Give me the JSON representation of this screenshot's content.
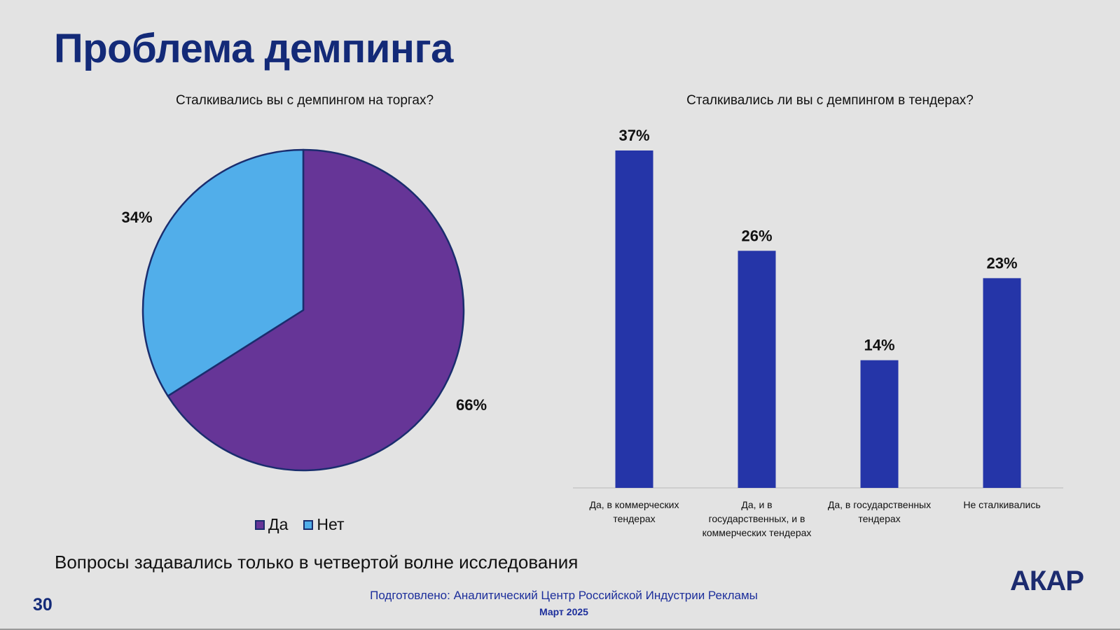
{
  "slide": {
    "title": "Проблема демпинга",
    "note": "Вопросы задавались только в четвертой волне исследования",
    "page_number": "30",
    "footer_source": "Подготовлено: Аналитический Центр Российской Индустрии Рекламы",
    "footer_date": "Март 2025",
    "logo_text": "АКАР"
  },
  "colors": {
    "title": "#132a78",
    "pie_yes": "#663597",
    "pie_no": "#51aeea",
    "pie_border": "#1a2d6e",
    "bar": "#2535a8",
    "axis": "#c8c8c8"
  },
  "chart_data": [
    {
      "type": "pie",
      "title": "Сталкивались вы с демпингом на торгах?",
      "categories": [
        "Да",
        "Нет"
      ],
      "values": [
        66,
        34
      ],
      "data_labels": [
        "66%",
        "34%"
      ],
      "legend": [
        "Да",
        "Нет"
      ],
      "legend_position": "bottom"
    },
    {
      "type": "bar",
      "title": "Сталкивались ли вы с демпингом в тендерах?",
      "categories": [
        "Да, в коммерческих тендерах",
        "Да, и в государственных, и в коммерческих тендерах",
        "Да, в государственных тендерах",
        "Не сталкивались"
      ],
      "category_label_lines": [
        [
          "Да, в коммерческих",
          "тендерах"
        ],
        [
          "Да, и в",
          "государственных, и в",
          "коммерческих тендерах"
        ],
        [
          "Да, в государственных",
          "тендерах"
        ],
        [
          "Не сталкивались"
        ]
      ],
      "values": [
        37,
        26,
        14,
        23
      ],
      "data_labels": [
        "37%",
        "26%",
        "14%",
        "23%"
      ],
      "ylim": [
        0,
        37
      ],
      "grid": false
    }
  ]
}
